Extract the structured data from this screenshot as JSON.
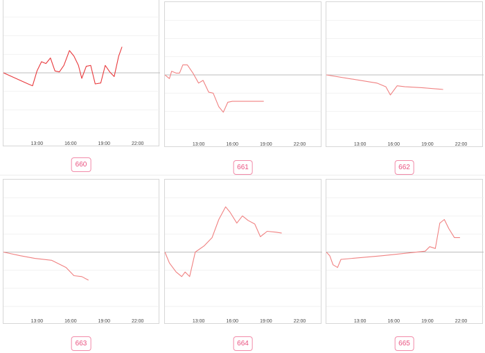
{
  "x_tick_labels": [
    "13:00",
    "16:00",
    "19:00",
    "22:00"
  ],
  "colors": {
    "line_primary": "#e8383b",
    "line_light": "#f08080",
    "badge": "#e9507e",
    "grid": "#eeeeee",
    "zero": "#bdbdbd"
  },
  "chart_data": [
    {
      "type": "line",
      "id": "660",
      "badge": "660",
      "xlim": [
        10.0,
        24.0
      ],
      "ylim": [
        -4,
        4
      ],
      "zero": 0,
      "x_ticks": [
        "13:00",
        "16:00",
        "19:00",
        "22:00"
      ],
      "series": [
        {
          "color": "#e8383b",
          "points": [
            [
              10.0,
              0.0
            ],
            [
              12.2,
              -0.6
            ],
            [
              12.6,
              -0.7
            ],
            [
              13.0,
              0.1
            ],
            [
              13.4,
              0.6
            ],
            [
              13.8,
              0.5
            ],
            [
              14.2,
              0.8
            ],
            [
              14.6,
              0.1
            ],
            [
              15.0,
              0.05
            ],
            [
              15.4,
              0.4
            ],
            [
              15.9,
              1.2
            ],
            [
              16.3,
              0.9
            ],
            [
              16.7,
              0.4
            ],
            [
              17.0,
              -0.3
            ],
            [
              17.4,
              0.35
            ],
            [
              17.8,
              0.4
            ],
            [
              18.2,
              -0.6
            ],
            [
              18.7,
              -0.55
            ],
            [
              19.1,
              0.4
            ],
            [
              19.5,
              0.05
            ],
            [
              19.9,
              -0.2
            ],
            [
              20.3,
              0.9
            ],
            [
              20.6,
              1.4
            ]
          ]
        }
      ]
    },
    {
      "type": "line",
      "id": "661",
      "badge": "661",
      "xlim": [
        10.0,
        24.0
      ],
      "ylim": [
        -4,
        4
      ],
      "zero": 0,
      "x_ticks": [
        "13:00",
        "16:00",
        "19:00",
        "22:00"
      ],
      "series": [
        {
          "color": "#f08080",
          "points": [
            [
              10.0,
              0.0
            ],
            [
              10.4,
              -0.2
            ],
            [
              10.6,
              0.2
            ],
            [
              11.0,
              0.1
            ],
            [
              11.3,
              0.1
            ],
            [
              11.6,
              0.55
            ],
            [
              12.0,
              0.55
            ],
            [
              12.5,
              0.1
            ],
            [
              13.0,
              -0.45
            ],
            [
              13.4,
              -0.3
            ],
            [
              13.9,
              -0.95
            ],
            [
              14.3,
              -1.0
            ],
            [
              14.8,
              -1.75
            ],
            [
              15.2,
              -2.05
            ],
            [
              15.6,
              -1.5
            ],
            [
              16.0,
              -1.45
            ],
            [
              16.6,
              -1.45
            ],
            [
              17.2,
              -1.45
            ],
            [
              17.8,
              -1.45
            ],
            [
              18.3,
              -1.45
            ],
            [
              18.8,
              -1.45
            ]
          ]
        }
      ]
    },
    {
      "type": "line",
      "id": "662",
      "badge": "662",
      "xlim": [
        10.0,
        24.0
      ],
      "ylim": [
        -4,
        4
      ],
      "zero": 0,
      "x_ticks": [
        "13:00",
        "16:00",
        "19:00",
        "22:00"
      ],
      "series": [
        {
          "color": "#f08080",
          "points": [
            [
              10.0,
              0.0
            ],
            [
              14.5,
              -0.45
            ],
            [
              15.3,
              -0.65
            ],
            [
              15.7,
              -1.1
            ],
            [
              16.3,
              -0.6
            ],
            [
              17.0,
              -0.65
            ],
            [
              18.5,
              -0.7
            ],
            [
              20.4,
              -0.8
            ]
          ]
        }
      ]
    },
    {
      "type": "line",
      "id": "663",
      "badge": "663",
      "xlim": [
        10.0,
        24.0
      ],
      "ylim": [
        -4,
        4
      ],
      "zero": 0,
      "x_ticks": [
        "13:00",
        "16:00",
        "19:00",
        "22:00"
      ],
      "series": [
        {
          "color": "#f08080",
          "points": [
            [
              10.0,
              0.0
            ],
            [
              11.5,
              -0.2
            ],
            [
              12.8,
              -0.35
            ],
            [
              14.3,
              -0.45
            ],
            [
              15.6,
              -0.85
            ],
            [
              16.3,
              -1.3
            ],
            [
              17.0,
              -1.35
            ],
            [
              17.6,
              -1.55
            ]
          ]
        }
      ]
    },
    {
      "type": "line",
      "id": "664",
      "badge": "664",
      "xlim": [
        10.0,
        24.0
      ],
      "ylim": [
        -4,
        4
      ],
      "zero": 0,
      "x_ticks": [
        "13:00",
        "16:00",
        "19:00",
        "22:00"
      ],
      "series": [
        {
          "color": "#f08080",
          "points": [
            [
              10.0,
              0.0
            ],
            [
              10.4,
              -0.6
            ],
            [
              11.0,
              -1.1
            ],
            [
              11.5,
              -1.35
            ],
            [
              11.8,
              -1.1
            ],
            [
              12.2,
              -1.35
            ],
            [
              12.7,
              0.0
            ],
            [
              13.5,
              0.35
            ],
            [
              14.2,
              0.8
            ],
            [
              14.8,
              1.8
            ],
            [
              15.4,
              2.5
            ],
            [
              15.8,
              2.2
            ],
            [
              16.4,
              1.6
            ],
            [
              16.9,
              2.0
            ],
            [
              17.4,
              1.75
            ],
            [
              18.0,
              1.55
            ],
            [
              18.5,
              0.85
            ],
            [
              19.1,
              1.15
            ],
            [
              19.9,
              1.1
            ],
            [
              20.4,
              1.05
            ]
          ]
        }
      ]
    },
    {
      "type": "line",
      "id": "665",
      "badge": "665",
      "xlim": [
        10.0,
        24.0
      ],
      "ylim": [
        -4,
        4
      ],
      "zero": 0,
      "x_ticks": [
        "13:00",
        "16:00",
        "19:00",
        "22:00"
      ],
      "series": [
        {
          "color": "#f08080",
          "points": [
            [
              10.0,
              0.0
            ],
            [
              10.3,
              -0.2
            ],
            [
              10.6,
              -0.7
            ],
            [
              11.0,
              -0.85
            ],
            [
              11.3,
              -0.4
            ],
            [
              15.0,
              -0.2
            ],
            [
              18.8,
              0.05
            ],
            [
              19.2,
              0.3
            ],
            [
              19.7,
              0.2
            ],
            [
              20.1,
              1.6
            ],
            [
              20.5,
              1.8
            ],
            [
              20.9,
              1.3
            ],
            [
              21.4,
              0.8
            ],
            [
              21.9,
              0.8
            ]
          ]
        }
      ]
    }
  ]
}
